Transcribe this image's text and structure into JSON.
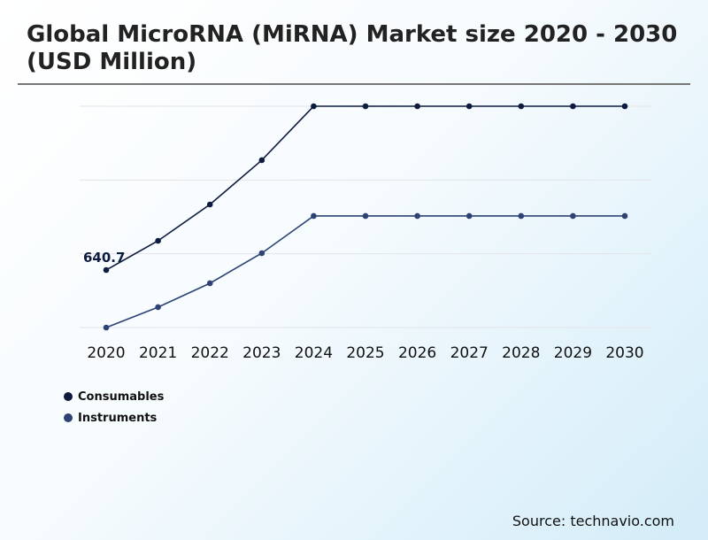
{
  "title": "Global MicroRNA (MiRNA) Market size 2020 - 2030 (USD Million)",
  "source": "Source: technavio.com",
  "chart_data": {
    "type": "line",
    "title": "Global MicroRNA (MiRNA) Market size 2020 - 2030 (USD Million)",
    "categories": [
      "2020",
      "2021",
      "2022",
      "2023",
      "2024",
      "2025",
      "2026",
      "2027",
      "2028",
      "2029",
      "2030"
    ],
    "series": [
      {
        "name": "Consumables",
        "color": "#0d1b3e",
        "values": [
          640.7,
          966,
          1370,
          1863,
          2464,
          2464,
          2464,
          2464,
          2464,
          2464,
          2464
        ]
      },
      {
        "name": "Instruments",
        "color": "#2e4374",
        "values": [
          0,
          227,
          493,
          828,
          1242,
          1242,
          1242,
          1242,
          1242,
          1242,
          1242
        ]
      }
    ],
    "data_labels": [
      {
        "series": "Consumables",
        "category": "2020",
        "text": "640.7"
      }
    ],
    "ylim": [
      0,
      2464
    ],
    "grid": true,
    "y_tick_labels_shown": false,
    "legend_position": "bottom-left"
  }
}
